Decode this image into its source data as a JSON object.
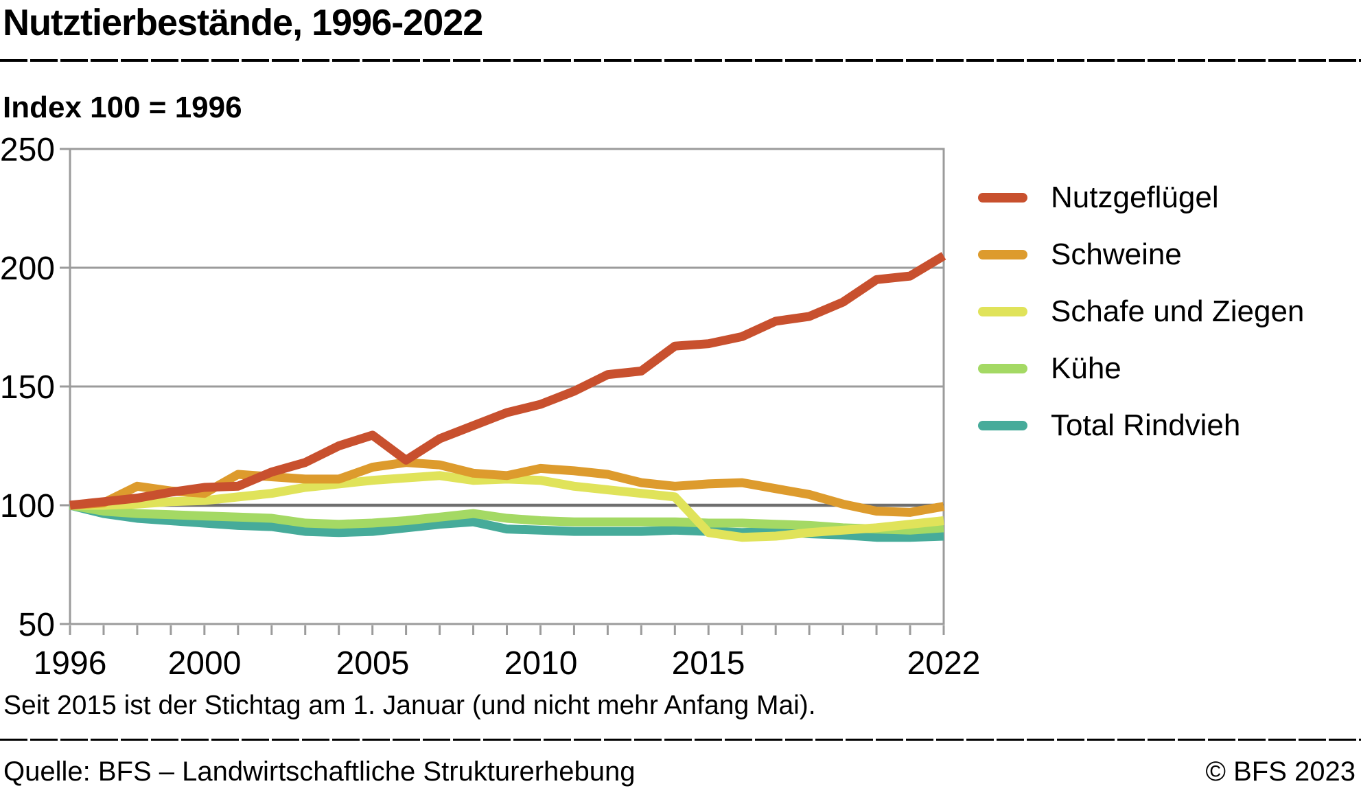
{
  "header": {
    "title": "Nutztierbestände, 1996-2022"
  },
  "chart": {
    "subtitle": "Index 100 = 1996",
    "y_tick_labels": [
      "250",
      "200",
      "150",
      "100",
      "50"
    ],
    "x_tick_labels": [
      "1996",
      "2000",
      "2005",
      "2010",
      "2015",
      "2022"
    ]
  },
  "footnote": "Seit 2015 ist der Stichtag am 1. Januar (und nicht mehr Anfang Mai).",
  "footer": {
    "source": "Quelle: BFS – Landwirtschaftliche Strukturerhebung",
    "copyright": "© BFS 2023"
  },
  "colors": {
    "grid": "#9b9b9b",
    "baseline": "#6e6e6e",
    "text": "#000000"
  },
  "chart_data": {
    "type": "line",
    "title": "Nutztierbestände, 1996-2022",
    "subtitle": "Index 100 = 1996",
    "ylim": [
      50,
      250
    ],
    "y_ticks": [
      50,
      100,
      150,
      200,
      250
    ],
    "baseline_value": 100,
    "grid": true,
    "legend_position": "right",
    "x": [
      1996,
      1997,
      1998,
      1999,
      2000,
      2001,
      2002,
      2003,
      2004,
      2005,
      2006,
      2007,
      2008,
      2009,
      2010,
      2011,
      2012,
      2013,
      2014,
      2015,
      2016,
      2017,
      2018,
      2019,
      2020,
      2021,
      2022
    ],
    "x_tick_years": [
      1996,
      2000,
      2005,
      2010,
      2015,
      2022
    ],
    "series": [
      {
        "name": "Nutzgeflügel",
        "color": "#c8502e",
        "values": [
          100,
          101.5,
          103,
          105.5,
          107.5,
          108,
          114,
          118,
          125,
          129.5,
          119,
          128,
          133.5,
          139,
          142.5,
          148,
          155,
          156.5,
          167,
          168,
          171,
          177.5,
          179.5,
          185.5,
          195,
          196.5,
          205
        ]
      },
      {
        "name": "Schweine",
        "color": "#dd9b2d",
        "values": [
          100,
          101,
          108,
          106,
          105,
          113,
          112,
          111,
          111,
          116,
          118,
          117,
          113.5,
          112.5,
          115.5,
          114.5,
          113,
          109.5,
          108,
          109,
          109.5,
          107,
          104.5,
          100.5,
          97.5,
          97,
          99.5
        ]
      },
      {
        "name": "Schafe und Ziegen",
        "color": "#e0e35a",
        "values": [
          100,
          100,
          100.5,
          101.5,
          102,
          103.5,
          105,
          107.5,
          109,
          110.5,
          111.5,
          112.5,
          110.5,
          111,
          110.5,
          108,
          106.5,
          105,
          103.5,
          88.5,
          86.5,
          87,
          88.5,
          89.5,
          90.5,
          92,
          93.5
        ]
      },
      {
        "name": "Kühe",
        "color": "#a4d964",
        "values": [
          100,
          97.5,
          96.5,
          96,
          95.5,
          95,
          94.5,
          92.5,
          92,
          92.5,
          93.5,
          95,
          96.5,
          94.5,
          93.5,
          93,
          93,
          93,
          93,
          92.5,
          92.5,
          92,
          91.5,
          90.5,
          90,
          89.5,
          90.5
        ]
      },
      {
        "name": "Total Rindvieh",
        "color": "#46ab9a",
        "values": [
          100,
          96.5,
          94.5,
          93.5,
          92.5,
          91.5,
          91,
          89,
          88.5,
          89,
          90.5,
          92,
          93,
          90,
          89.5,
          89,
          89,
          89,
          89.5,
          89,
          88.5,
          89,
          88,
          87.5,
          86.5,
          86.5,
          87
        ]
      }
    ]
  }
}
